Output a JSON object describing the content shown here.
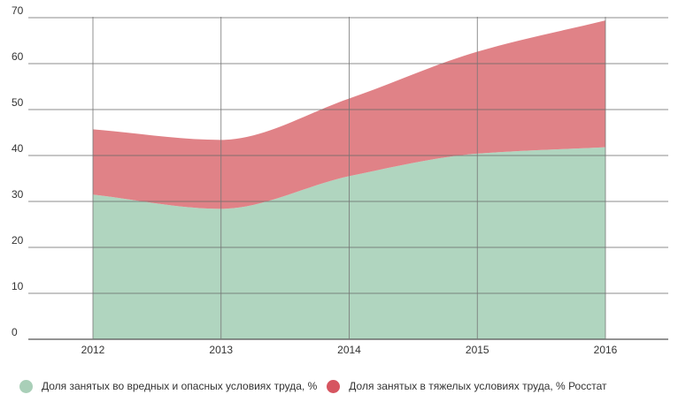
{
  "chart_data": {
    "type": "area",
    "stacked": true,
    "title": "",
    "xlabel": "",
    "ylabel": "",
    "categories": [
      "2012",
      "2013",
      "2014",
      "2015",
      "2016"
    ],
    "ylim": [
      0,
      70
    ],
    "yticks": [
      "0",
      "10",
      "20",
      "30",
      "40",
      "50",
      "60",
      "70"
    ],
    "grid": true,
    "legend_position": "bottom",
    "series": [
      {
        "name": "Доля занятых во вредных и опасных условиях труда, %",
        "values": [
          31.5,
          28.4,
          35.5,
          40.4,
          41.8
        ],
        "color": "#b0d5bf"
      },
      {
        "name": "Доля занятых в тяжелых условиях труда, % Росстат",
        "values": [
          14.2,
          15.0,
          16.9,
          22.2,
          27.6
        ],
        "color": "#e08287"
      }
    ]
  },
  "legend_colors": [
    "#a9cfb8",
    "#d65560"
  ]
}
